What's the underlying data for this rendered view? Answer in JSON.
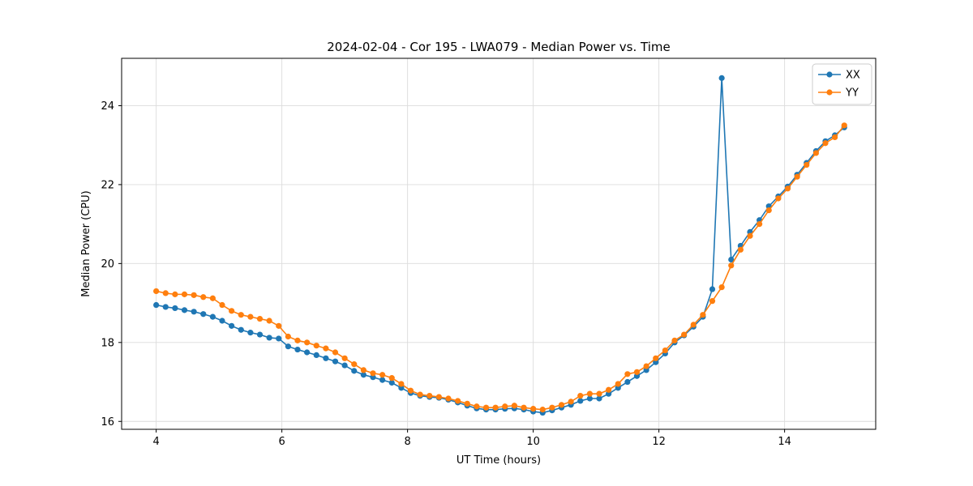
{
  "figure": {
    "background": "#ffffff",
    "plot_background": "#ffffff",
    "spine_color": "#000000",
    "grid_color": "#dcdcdc"
  },
  "chart_data": {
    "type": "line",
    "title": "2024-02-04 - Cor 195 - LWA079 - Median Power vs. Time",
    "xlabel": "UT Time (hours)",
    "ylabel": "Median Power (CPU)",
    "xlim": [
      3.45,
      15.45
    ],
    "ylim": [
      15.8,
      25.2
    ],
    "xticks": [
      4,
      6,
      8,
      10,
      12,
      14
    ],
    "yticks": [
      16,
      18,
      20,
      22,
      24
    ],
    "grid": true,
    "legend_position": "upper right",
    "marker": "circle",
    "x": [
      4.0,
      4.15,
      4.3,
      4.45,
      4.6,
      4.75,
      4.9,
      5.05,
      5.2,
      5.35,
      5.5,
      5.65,
      5.8,
      5.95,
      6.1,
      6.25,
      6.4,
      6.55,
      6.7,
      6.85,
      7.0,
      7.15,
      7.3,
      7.45,
      7.6,
      7.75,
      7.9,
      8.05,
      8.2,
      8.35,
      8.5,
      8.65,
      8.8,
      8.95,
      9.1,
      9.25,
      9.4,
      9.55,
      9.7,
      9.85,
      10.0,
      10.15,
      10.3,
      10.45,
      10.6,
      10.75,
      10.9,
      11.05,
      11.2,
      11.35,
      11.5,
      11.65,
      11.8,
      11.95,
      12.1,
      12.25,
      12.4,
      12.55,
      12.7,
      12.85,
      13.0,
      13.15,
      13.3,
      13.45,
      13.6,
      13.75,
      13.9,
      14.05,
      14.2,
      14.35,
      14.5,
      14.65,
      14.8,
      14.95
    ],
    "series": [
      {
        "name": "XX",
        "color": "#1f77b4",
        "values": [
          18.95,
          18.9,
          18.87,
          18.82,
          18.78,
          18.72,
          18.65,
          18.55,
          18.42,
          18.32,
          18.25,
          18.2,
          18.12,
          18.1,
          17.9,
          17.82,
          17.75,
          17.68,
          17.6,
          17.52,
          17.42,
          17.28,
          17.18,
          17.12,
          17.05,
          16.98,
          16.85,
          16.72,
          16.65,
          16.62,
          16.6,
          16.55,
          16.48,
          16.4,
          16.33,
          16.3,
          16.3,
          16.32,
          16.33,
          16.3,
          16.25,
          16.22,
          16.28,
          16.35,
          16.42,
          16.52,
          16.58,
          16.58,
          16.7,
          16.85,
          17.0,
          17.15,
          17.3,
          17.5,
          17.72,
          18.0,
          18.18,
          18.4,
          18.65,
          19.35,
          24.7,
          20.1,
          20.45,
          20.8,
          21.1,
          21.45,
          21.7,
          21.95,
          22.25,
          22.55,
          22.85,
          23.1,
          23.25,
          23.45
        ]
      },
      {
        "name": "YY",
        "color": "#ff7f0e",
        "values": [
          19.3,
          19.25,
          19.22,
          19.22,
          19.2,
          19.15,
          19.12,
          18.95,
          18.8,
          18.7,
          18.65,
          18.6,
          18.55,
          18.42,
          18.15,
          18.05,
          18.0,
          17.92,
          17.85,
          17.75,
          17.6,
          17.45,
          17.3,
          17.22,
          17.18,
          17.1,
          16.95,
          16.78,
          16.68,
          16.65,
          16.62,
          16.58,
          16.52,
          16.45,
          16.38,
          16.35,
          16.35,
          16.38,
          16.4,
          16.35,
          16.32,
          16.3,
          16.35,
          16.42,
          16.5,
          16.65,
          16.7,
          16.7,
          16.8,
          16.95,
          17.2,
          17.25,
          17.4,
          17.6,
          17.8,
          18.05,
          18.2,
          18.45,
          18.7,
          19.05,
          19.4,
          19.95,
          20.35,
          20.7,
          21.0,
          21.35,
          21.65,
          21.9,
          22.2,
          22.5,
          22.8,
          23.05,
          23.2,
          23.5
        ]
      }
    ]
  }
}
